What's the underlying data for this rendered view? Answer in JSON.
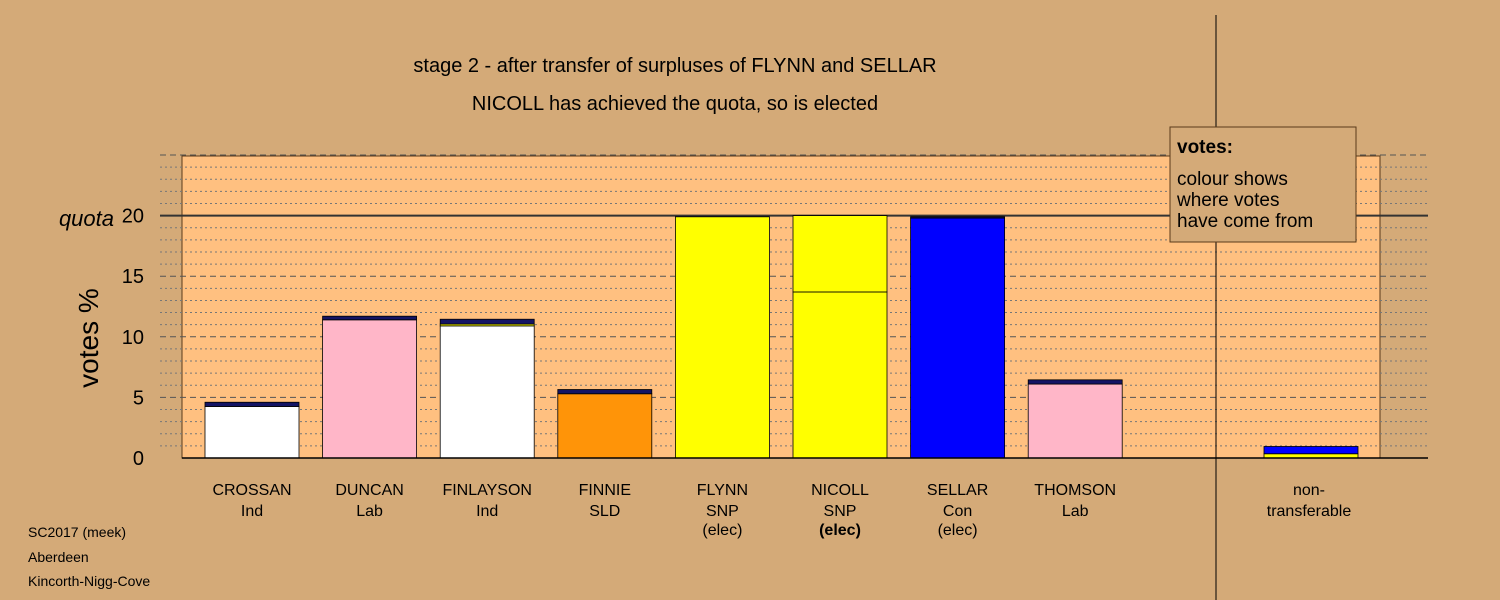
{
  "chart_data": {
    "type": "bar",
    "stacked": true,
    "title": "stage 2 - after transfer of surpluses of FLYNN and SELLAR",
    "subtitle": "NICOLL has achieved the quota, so is elected",
    "ylabel": "votes %",
    "ylim": [
      0,
      25
    ],
    "yticks": [
      0,
      5,
      10,
      15,
      20
    ],
    "grid": true,
    "quota": {
      "label": "quota",
      "value": 20
    },
    "colors": {
      "Ind": "#ffffff",
      "Lab": "#ffb6c8",
      "SLD": "#ff9408",
      "SNP": "#ffff00",
      "Con": "#0000ff",
      "transfer": "#141464",
      "plot_bg": "#ffc080",
      "page_bg": "#d4aa78"
    },
    "candidates": [
      {
        "name": "CROSSAN",
        "party": "Ind",
        "elec": "",
        "segments": [
          {
            "value": 4.25,
            "color": "#ffffff"
          },
          {
            "value": 0.35,
            "color": "#141464"
          }
        ]
      },
      {
        "name": "DUNCAN",
        "party": "Lab",
        "elec": "",
        "segments": [
          {
            "value": 11.4,
            "color": "#ffb6c8"
          },
          {
            "value": 0.3,
            "color": "#141464"
          }
        ]
      },
      {
        "name": "FINLAYSON",
        "party": "Ind",
        "elec": "",
        "segments": [
          {
            "value": 10.9,
            "color": "#ffffff"
          },
          {
            "value": 0.15,
            "color": "#ffff00"
          },
          {
            "value": 0.4,
            "color": "#141464"
          }
        ]
      },
      {
        "name": "FINNIE",
        "party": "SLD",
        "elec": "",
        "segments": [
          {
            "value": 5.3,
            "color": "#ff9408"
          },
          {
            "value": 0.35,
            "color": "#141464"
          }
        ]
      },
      {
        "name": "FLYNN",
        "party": "SNP",
        "elec": "(elec)",
        "segments": [
          {
            "value": 19.9,
            "color": "#ffff00"
          }
        ]
      },
      {
        "name": "NICOLL",
        "party": "SNP",
        "elec": "(elec)",
        "elecBold": true,
        "segments": [
          {
            "value": 13.7,
            "color": "#ffff00"
          },
          {
            "value": 6.3,
            "color": "#ffff00"
          }
        ]
      },
      {
        "name": "SELLAR",
        "party": "Con",
        "elec": "(elec)",
        "segments": [
          {
            "value": 19.8,
            "color": "#0000ff"
          },
          {
            "value": 0.1,
            "color": "#141464"
          }
        ]
      },
      {
        "name": "THOMSON",
        "party": "Lab",
        "elec": "",
        "segments": [
          {
            "value": 6.1,
            "color": "#ffb6c8"
          },
          {
            "value": 0.35,
            "color": "#141464"
          }
        ]
      }
    ],
    "non_transferable": {
      "label_line1": "non-",
      "label_line2": "transferable",
      "segments": [
        {
          "value": 0.35,
          "color": "#ffff00"
        },
        {
          "value": 0.6,
          "color": "#0000ff"
        }
      ]
    },
    "legend": {
      "title": "votes:",
      "lines": [
        "colour shows",
        "where votes",
        "have come from"
      ]
    }
  },
  "footer": {
    "line1": "SC2017 (meek)",
    "line2": "Aberdeen",
    "line3": "Kincorth-Nigg-Cove"
  }
}
